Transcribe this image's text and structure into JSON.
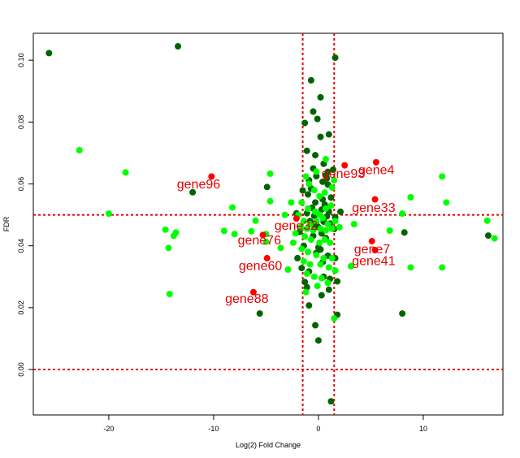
{
  "chart_data": {
    "type": "scatter",
    "title": "",
    "xlabel": "Log(2) Fold Change",
    "ylabel": "FDR",
    "xlim": [
      -27.2,
      17.6
    ],
    "ylim": [
      -0.0147,
      0.1087
    ],
    "x_ticks": [
      -20,
      -10,
      0,
      10
    ],
    "x_tick_labels": [
      "-20",
      "-10",
      "0",
      "10"
    ],
    "y_ticks": [
      0.0,
      0.02,
      0.04,
      0.06,
      0.08,
      0.1
    ],
    "y_tick_labels": [
      "0.00",
      "0.02",
      "0.04",
      "0.06",
      "0.08",
      "0.10"
    ],
    "grid": false,
    "legend": "none",
    "thresholds": {
      "x": [
        -1.5,
        1.5
      ],
      "y": [
        0.0,
        0.05
      ],
      "color": "#e60000"
    },
    "colors": {
      "dark_green": "#006400",
      "bright_green": "#00ff00",
      "red": "#ff0000",
      "label_red": "#e60000"
    },
    "series": [
      {
        "color": "dark_green",
        "points": [
          [
            -25.7,
            0.1023
          ],
          [
            -13.4,
            0.1045
          ],
          [
            1.6,
            0.1008
          ],
          [
            -0.7,
            0.0935
          ],
          [
            -0.5,
            0.0834
          ],
          [
            0.2,
            0.088
          ],
          [
            -0.1,
            0.081
          ],
          [
            -1.3,
            0.0797
          ],
          [
            1.0,
            0.076
          ],
          [
            0.2,
            0.0752
          ],
          [
            -1.1,
            0.0707
          ],
          [
            -0.3,
            0.0693
          ],
          [
            0.5,
            0.0665
          ],
          [
            -0.5,
            0.065
          ],
          [
            0.9,
            0.0639
          ],
          [
            1.4,
            0.0646
          ],
          [
            0.7,
            0.0627
          ],
          [
            -0.2,
            0.0625
          ],
          [
            0.8,
            0.0618
          ],
          [
            0.4,
            0.0607
          ],
          [
            -0.9,
            0.0612
          ],
          [
            0.9,
            0.0598
          ],
          [
            -0.7,
            0.0585
          ],
          [
            -1.5,
            0.0579
          ],
          [
            -1.0,
            0.0566
          ],
          [
            1.2,
            0.0556
          ],
          [
            0.4,
            0.055
          ],
          [
            -0.3,
            0.054
          ],
          [
            0.6,
            0.0533
          ],
          [
            -0.6,
            0.0523
          ],
          [
            0.3,
            0.0517
          ],
          [
            1.0,
            0.051
          ],
          [
            -1.1,
            0.0505
          ],
          [
            -0.4,
            0.0497
          ],
          [
            0.8,
            0.0495
          ],
          [
            1.6,
            0.0492
          ],
          [
            -0.8,
            0.048
          ],
          [
            0.5,
            0.0478
          ],
          [
            1.1,
            0.0472
          ],
          [
            -0.2,
            0.0467
          ],
          [
            0.0,
            0.046
          ],
          [
            1.5,
            0.0454
          ],
          [
            -1.8,
            0.0445
          ],
          [
            0.3,
            0.044
          ],
          [
            -0.5,
            0.0432
          ],
          [
            0.7,
            0.0425
          ],
          [
            -1.4,
            0.04
          ],
          [
            0.2,
            0.0388
          ],
          [
            -0.2,
            0.0377
          ],
          [
            0.9,
            0.0368
          ],
          [
            1.6,
            0.036
          ],
          [
            -2.0,
            0.036
          ],
          [
            0.4,
            0.0347
          ],
          [
            -1.6,
            0.0328
          ],
          [
            -0.9,
            0.0317
          ],
          [
            0.5,
            0.03
          ],
          [
            1.1,
            0.0293
          ],
          [
            -1.3,
            0.0283
          ],
          [
            1.8,
            0.0285
          ],
          [
            1.0,
            0.0258
          ],
          [
            -1.1,
            0.0266
          ],
          [
            0.3,
            0.024
          ],
          [
            -0.9,
            0.0207
          ],
          [
            1.8,
            0.0177
          ],
          [
            -0.3,
            0.0143
          ],
          [
            0.0,
            0.0094
          ],
          [
            1.2,
            -0.0103
          ],
          [
            -12.0,
            0.0573
          ],
          [
            -4.9,
            0.059
          ],
          [
            -5.6,
            0.0181
          ],
          [
            8.0,
            0.0181
          ],
          [
            8.2,
            0.0443
          ],
          [
            16.2,
            0.0433
          ],
          [
            0.0,
            0.0395
          ],
          [
            -2.1,
            0.0505
          ],
          [
            2.1,
            0.051
          ],
          [
            -0.6,
            0.047
          ]
        ]
      },
      {
        "color": "bright_green",
        "points": [
          [
            -22.8,
            0.0709
          ],
          [
            -18.4,
            0.0637
          ],
          [
            -20.0,
            0.0504
          ],
          [
            -14.6,
            0.0452
          ],
          [
            -14.3,
            0.0393
          ],
          [
            -13.8,
            0.0432
          ],
          [
            -13.6,
            0.0443
          ],
          [
            -14.2,
            0.0244
          ],
          [
            -9.0,
            0.0448
          ],
          [
            -8.0,
            0.0438
          ],
          [
            -8.2,
            0.0524
          ],
          [
            -6.0,
            0.0481
          ],
          [
            -5.0,
            0.0438
          ],
          [
            -6.4,
            0.0447
          ],
          [
            -4.6,
            0.0633
          ],
          [
            -4.6,
            0.0544
          ],
          [
            -5.0,
            0.0413
          ],
          [
            -3.6,
            0.0393
          ],
          [
            -2.9,
            0.0323
          ],
          [
            -1.2,
            0.0624
          ],
          [
            -0.9,
            0.06
          ],
          [
            -0.4,
            0.058
          ],
          [
            0.1,
            0.056
          ],
          [
            0.6,
            0.0572
          ],
          [
            1.3,
            0.0588
          ],
          [
            1.5,
            0.0612
          ],
          [
            -1.6,
            0.054
          ],
          [
            -1.0,
            0.052
          ],
          [
            -0.3,
            0.051
          ],
          [
            0.1,
            0.05
          ],
          [
            0.7,
            0.052
          ],
          [
            1.2,
            0.053
          ],
          [
            -1.9,
            0.05
          ],
          [
            -1.4,
            0.048
          ],
          [
            -0.8,
            0.047
          ],
          [
            -0.2,
            0.048
          ],
          [
            0.4,
            0.049
          ],
          [
            0.9,
            0.047
          ],
          [
            1.6,
            0.048
          ],
          [
            -1.7,
            0.046
          ],
          [
            -1.1,
            0.0455
          ],
          [
            -0.5,
            0.045
          ],
          [
            0.2,
            0.0455
          ],
          [
            0.7,
            0.045
          ],
          [
            1.3,
            0.0455
          ],
          [
            -2.2,
            0.044
          ],
          [
            -1.3,
            0.043
          ],
          [
            -0.7,
            0.042
          ],
          [
            0.1,
            0.041
          ],
          [
            0.6,
            0.042
          ],
          [
            1.1,
            0.041
          ],
          [
            -2.4,
            0.041
          ],
          [
            -1.6,
            0.039
          ],
          [
            -1.0,
            0.038
          ],
          [
            -0.2,
            0.037
          ],
          [
            0.5,
            0.036
          ],
          [
            1.3,
            0.036
          ],
          [
            -1.4,
            0.035
          ],
          [
            -0.8,
            0.034
          ],
          [
            0.2,
            0.034
          ],
          [
            1.0,
            0.033
          ],
          [
            1.6,
            0.032
          ],
          [
            -1.1,
            0.031
          ],
          [
            -0.4,
            0.03
          ],
          [
            0.3,
            0.0295
          ],
          [
            0.9,
            0.028
          ],
          [
            -1.2,
            0.025
          ],
          [
            -0.1,
            0.027
          ],
          [
            1.5,
            0.0165
          ],
          [
            0.7,
            0.068
          ],
          [
            -0.2,
            0.064
          ],
          [
            3.1,
            0.0334
          ],
          [
            6.8,
            0.0449
          ],
          [
            8.0,
            0.0504
          ],
          [
            8.8,
            0.0557
          ],
          [
            8.8,
            0.033
          ],
          [
            11.8,
            0.0624
          ],
          [
            12.2,
            0.054
          ],
          [
            11.8,
            0.033
          ],
          [
            16.1,
            0.0481
          ],
          [
            16.8,
            0.0424
          ],
          [
            -2.6,
            0.054
          ],
          [
            2.0,
            0.046
          ],
          [
            -3.2,
            0.05
          ],
          [
            3.4,
            0.047
          ]
        ]
      },
      {
        "color": "red",
        "points": [
          [
            -10.2,
            0.0624
          ],
          [
            -5.3,
            0.0435
          ],
          [
            -4.9,
            0.036
          ],
          [
            -6.2,
            0.025
          ],
          [
            -2.1,
            0.0488
          ],
          [
            2.5,
            0.066
          ],
          [
            5.5,
            0.067
          ],
          [
            5.4,
            0.055
          ],
          [
            5.1,
            0.0415
          ],
          [
            5.4,
            0.0386
          ]
        ]
      }
    ],
    "annotations": [
      {
        "text": "gene96",
        "x": -13.5,
        "y": 0.0585
      },
      {
        "text": "gene76",
        "x": -7.7,
        "y": 0.0405
      },
      {
        "text": "gene60",
        "x": -7.6,
        "y": 0.0322
      },
      {
        "text": "gene88",
        "x": -8.9,
        "y": 0.0215
      },
      {
        "text": "gene32",
        "x": -4.2,
        "y": 0.0452
      },
      {
        "text": "gene93",
        "x": 0.3,
        "y": 0.062
      },
      {
        "text": "gene4",
        "x": 3.8,
        "y": 0.0632
      },
      {
        "text": "gene33",
        "x": 3.2,
        "y": 0.051
      },
      {
        "text": "gene7",
        "x": 3.4,
        "y": 0.0375
      },
      {
        "text": "gene41",
        "x": 3.2,
        "y": 0.0338
      }
    ]
  }
}
